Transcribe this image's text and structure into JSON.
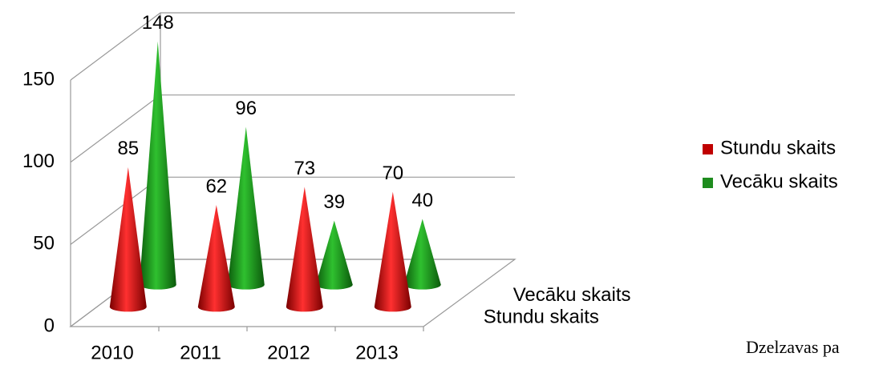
{
  "chart_data": {
    "type": "cone3d",
    "categories": [
      "2010",
      "2011",
      "2012",
      "2013"
    ],
    "series": [
      {
        "name": "Stundu skaits",
        "color": "#c00000",
        "values": [
          85,
          62,
          73,
          70
        ]
      },
      {
        "name": "Vecāku skaits",
        "color": "#1e8c1e",
        "values": [
          148,
          96,
          39,
          40
        ]
      }
    ],
    "ylim": [
      0,
      150
    ],
    "yticks": [
      0,
      50,
      100,
      150
    ],
    "grid": true,
    "legend": "right"
  },
  "footer_text": "Dzelzavas pa"
}
